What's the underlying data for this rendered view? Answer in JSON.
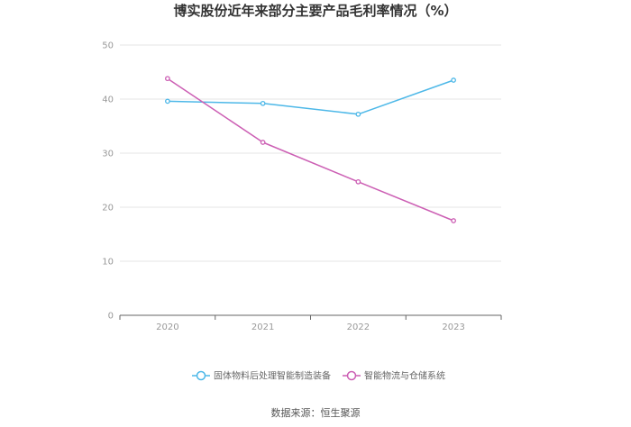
{
  "chart_data": {
    "type": "line",
    "title": "博实股份近年来部分主要产品毛利率情况（%）",
    "categories": [
      "2020",
      "2021",
      "2022",
      "2023"
    ],
    "series": [
      {
        "name": "固体物料后处理智能制造装备",
        "color": "#4db8e8",
        "values": [
          39.6,
          39.2,
          37.2,
          43.5
        ]
      },
      {
        "name": "智能物流与仓储系统",
        "color": "#cc5fb4",
        "values": [
          43.8,
          32.0,
          24.7,
          17.5
        ]
      }
    ],
    "ylim": [
      0,
      50
    ],
    "yticks": [
      0,
      10,
      20,
      30,
      40,
      50
    ],
    "grid": true,
    "legend_position": "bottom"
  },
  "source": "数据来源：恒生聚源"
}
